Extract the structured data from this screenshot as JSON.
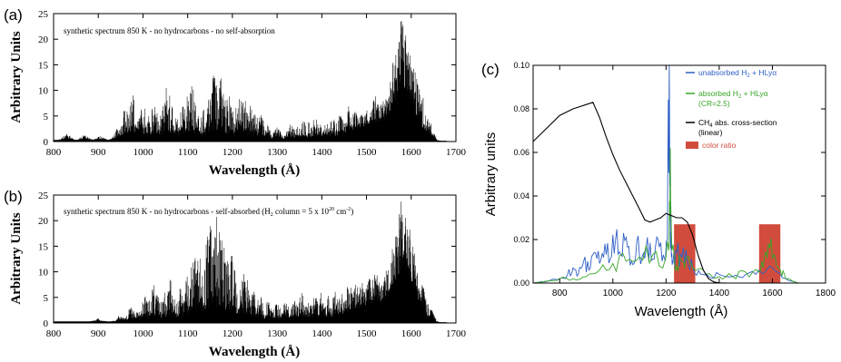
{
  "chart_data": [
    {
      "panel_label": "(a)",
      "type": "line",
      "annotation": "synthetic spectrum 850 K  -  no hydrocarbons  -   no self-absorption",
      "xlabel": "Wavelength (Å)",
      "ylabel": "Arbitrary Units",
      "xlim": [
        800,
        1700
      ],
      "ylim": [
        0,
        25
      ],
      "xticks": [
        800,
        900,
        1000,
        1100,
        1200,
        1300,
        1400,
        1500,
        1600,
        1700
      ],
      "yticks": [
        0,
        5,
        10,
        15,
        20,
        25
      ],
      "grid": false,
      "series": [
        {
          "color": "#000000",
          "peaks": [
            [
              830,
              1.2
            ],
            [
              870,
              1.0
            ],
            [
              905,
              0.8
            ],
            [
              945,
              2.5
            ],
            [
              960,
              6.5
            ],
            [
              975,
              9.6
            ],
            [
              985,
              8.0
            ],
            [
              1000,
              7.2
            ],
            [
              1010,
              5.0
            ],
            [
              1025,
              7.5
            ],
            [
              1035,
              5.5
            ],
            [
              1050,
              8.2
            ],
            [
              1055,
              10.8
            ],
            [
              1065,
              6.5
            ],
            [
              1075,
              5.0
            ],
            [
              1085,
              7.8
            ],
            [
              1100,
              8.5
            ],
            [
              1108,
              11.5
            ],
            [
              1120,
              7.5
            ],
            [
              1135,
              6.0
            ],
            [
              1150,
              8.5
            ],
            [
              1160,
              13.5
            ],
            [
              1168,
              9.0
            ],
            [
              1175,
              12.0
            ],
            [
              1185,
              8.5
            ],
            [
              1195,
              9.0
            ],
            [
              1210,
              7.0
            ],
            [
              1218,
              10.0
            ],
            [
              1228,
              8.0
            ],
            [
              1240,
              7.5
            ],
            [
              1250,
              6.0
            ],
            [
              1262,
              5.5
            ],
            [
              1275,
              3.5
            ],
            [
              1300,
              2.5
            ],
            [
              1330,
              3.0
            ],
            [
              1345,
              2.5
            ],
            [
              1360,
              4.0
            ],
            [
              1370,
              3.5
            ],
            [
              1385,
              4.2
            ],
            [
              1395,
              3.0
            ],
            [
              1410,
              3.5
            ],
            [
              1425,
              4.0
            ],
            [
              1440,
              4.5
            ],
            [
              1460,
              6.0
            ],
            [
              1475,
              4.5
            ],
            [
              1490,
              4.0
            ],
            [
              1505,
              4.5
            ],
            [
              1520,
              6.0
            ],
            [
              1535,
              4.8
            ],
            [
              1545,
              5.0
            ],
            [
              1560,
              10.0
            ],
            [
              1570,
              12.5
            ],
            [
              1578,
              16.0
            ],
            [
              1585,
              13.0
            ],
            [
              1595,
              11.5
            ],
            [
              1605,
              10.5
            ],
            [
              1615,
              9.0
            ],
            [
              1625,
              7.5
            ],
            [
              1640,
              4.0
            ]
          ]
        }
      ]
    },
    {
      "panel_label": "(b)",
      "type": "line",
      "annotation_parts": [
        "synthetic spectrum 850 K  -  no hydrocarbons  -   self-absorbed  (H",
        "2",
        " column = 5 x 10",
        "20",
        " cm",
        "-2",
        ")"
      ],
      "xlabel": "Wavelength (Å)",
      "ylabel": "Arbitrary Units",
      "xlim": [
        800,
        1700
      ],
      "ylim": [
        0,
        25
      ],
      "xticks": [
        800,
        900,
        1000,
        1100,
        1200,
        1300,
        1400,
        1500,
        1600,
        1700
      ],
      "yticks": [
        0,
        5,
        10,
        15,
        20,
        25
      ],
      "grid": false,
      "series": [
        {
          "color": "#000000",
          "peaks": [
            [
              900,
              0.5
            ],
            [
              950,
              1.2
            ],
            [
              975,
              3.0
            ],
            [
              990,
              2.5
            ],
            [
              1005,
              5.0
            ],
            [
              1015,
              4.0
            ],
            [
              1025,
              7.0
            ],
            [
              1035,
              5.5
            ],
            [
              1050,
              6.0
            ],
            [
              1060,
              8.5
            ],
            [
              1070,
              5.0
            ],
            [
              1085,
              7.0
            ],
            [
              1100,
              9.0
            ],
            [
              1110,
              12.5
            ],
            [
              1118,
              17.5
            ],
            [
              1125,
              14.0
            ],
            [
              1135,
              11.0
            ],
            [
              1145,
              17.0
            ],
            [
              1150,
              21.0
            ],
            [
              1158,
              18.0
            ],
            [
              1165,
              21.0
            ],
            [
              1172,
              19.0
            ],
            [
              1180,
              15.0
            ],
            [
              1190,
              12.0
            ],
            [
              1200,
              13.5
            ],
            [
              1210,
              10.0
            ],
            [
              1220,
              12.0
            ],
            [
              1232,
              8.5
            ],
            [
              1245,
              7.0
            ],
            [
              1260,
              5.5
            ],
            [
              1280,
              4.0
            ],
            [
              1300,
              3.5
            ],
            [
              1320,
              4.0
            ],
            [
              1340,
              4.5
            ],
            [
              1355,
              5.5
            ],
            [
              1370,
              4.0
            ],
            [
              1385,
              5.0
            ],
            [
              1400,
              6.0
            ],
            [
              1415,
              5.0
            ],
            [
              1430,
              6.5
            ],
            [
              1445,
              5.0
            ],
            [
              1460,
              7.0
            ],
            [
              1475,
              6.0
            ],
            [
              1490,
              5.5
            ],
            [
              1505,
              6.5
            ],
            [
              1520,
              8.0
            ],
            [
              1530,
              5.5
            ],
            [
              1545,
              7.5
            ],
            [
              1560,
              10.0
            ],
            [
              1570,
              12.5
            ],
            [
              1578,
              16.0
            ],
            [
              1585,
              13.5
            ],
            [
              1595,
              12.0
            ],
            [
              1605,
              10.0
            ],
            [
              1615,
              8.5
            ],
            [
              1625,
              6.5
            ],
            [
              1640,
              3.0
            ]
          ]
        }
      ]
    },
    {
      "panel_label": "(c)",
      "type": "line",
      "xlabel": "Wavelength (Å)",
      "ylabel": "Arbitrary units",
      "xlim": [
        700,
        1800
      ],
      "ylim": [
        0,
        0.1
      ],
      "xticks": [
        800,
        1000,
        1200,
        1400,
        1600,
        1800
      ],
      "yticks": [
        "0.00",
        "0.02",
        "0.04",
        "0.06",
        "0.08",
        "0.10"
      ],
      "grid": false,
      "legend_position": "top-right",
      "series": [
        {
          "name_parts": [
            "unabsorbed H",
            "2",
            " + HLyα"
          ],
          "color": "#2f5fc7",
          "x": [
            700,
            760,
            800,
            830,
            850,
            870,
            890,
            910,
            930,
            950,
            970,
            990,
            1010,
            1030,
            1050,
            1070,
            1090,
            1110,
            1130,
            1150,
            1170,
            1190,
            1205,
            1212,
            1216,
            1220,
            1226,
            1240,
            1260,
            1280,
            1300,
            1330,
            1360,
            1400,
            1450,
            1500,
            1550,
            1600,
            1650,
            1700
          ],
          "y": [
            0.0,
            0.001,
            0.002,
            0.004,
            0.007,
            0.004,
            0.01,
            0.006,
            0.014,
            0.009,
            0.018,
            0.011,
            0.02,
            0.013,
            0.021,
            0.01,
            0.019,
            0.012,
            0.021,
            0.011,
            0.02,
            0.013,
            0.02,
            0.1,
            0.03,
            0.012,
            0.009,
            0.014,
            0.012,
            0.01,
            0.007,
            0.004,
            0.003,
            0.004,
            0.003,
            0.004,
            0.006,
            0.007,
            0.002,
            0.0
          ]
        },
        {
          "name_parts": [
            "absorbed H",
            "2",
            " + HLyα"
          ],
          "name_sub": "(CR=2.5)",
          "color": "#3aa62a",
          "x": [
            700,
            760,
            800,
            850,
            900,
            950,
            1000,
            1050,
            1100,
            1150,
            1200,
            1210,
            1216,
            1222,
            1240,
            1260,
            1280,
            1300,
            1350,
            1400,
            1450,
            1500,
            1550,
            1570,
            1590,
            1610,
            1630,
            1650,
            1700
          ],
          "y": [
            0.0,
            0.001,
            0.002,
            0.002,
            0.003,
            0.006,
            0.009,
            0.01,
            0.012,
            0.013,
            0.012,
            0.015,
            0.062,
            0.015,
            0.008,
            0.01,
            0.012,
            0.007,
            0.004,
            0.003,
            0.003,
            0.005,
            0.005,
            0.012,
            0.016,
            0.012,
            0.006,
            0.002,
            0.0
          ]
        },
        {
          "name": "CH4 abs. cross-section",
          "name_parts": [
            "CH",
            "4",
            " abs. cross-section"
          ],
          "name_sub": "(linear)",
          "color": "#000000",
          "x": [
            700,
            750,
            800,
            850,
            900,
            925,
            950,
            975,
            1000,
            1025,
            1050,
            1075,
            1100,
            1120,
            1140,
            1160,
            1180,
            1200,
            1220,
            1240,
            1260,
            1280,
            1300,
            1320,
            1340,
            1360,
            1380,
            1400,
            1430
          ],
          "y": [
            0.065,
            0.071,
            0.077,
            0.08,
            0.082,
            0.083,
            0.076,
            0.067,
            0.059,
            0.052,
            0.046,
            0.04,
            0.034,
            0.029,
            0.028,
            0.029,
            0.03,
            0.032,
            0.031,
            0.03,
            0.03,
            0.028,
            0.022,
            0.013,
            0.006,
            0.002,
            0.0005,
            0.0001,
            0.0
          ]
        }
      ],
      "bars": {
        "name": "color ratio",
        "color": "#d14c3c",
        "items": [
          {
            "x0": 1230,
            "x1": 1310,
            "value": 0.027
          },
          {
            "x0": 1550,
            "x1": 1630,
            "value": 0.027
          }
        ]
      }
    }
  ]
}
